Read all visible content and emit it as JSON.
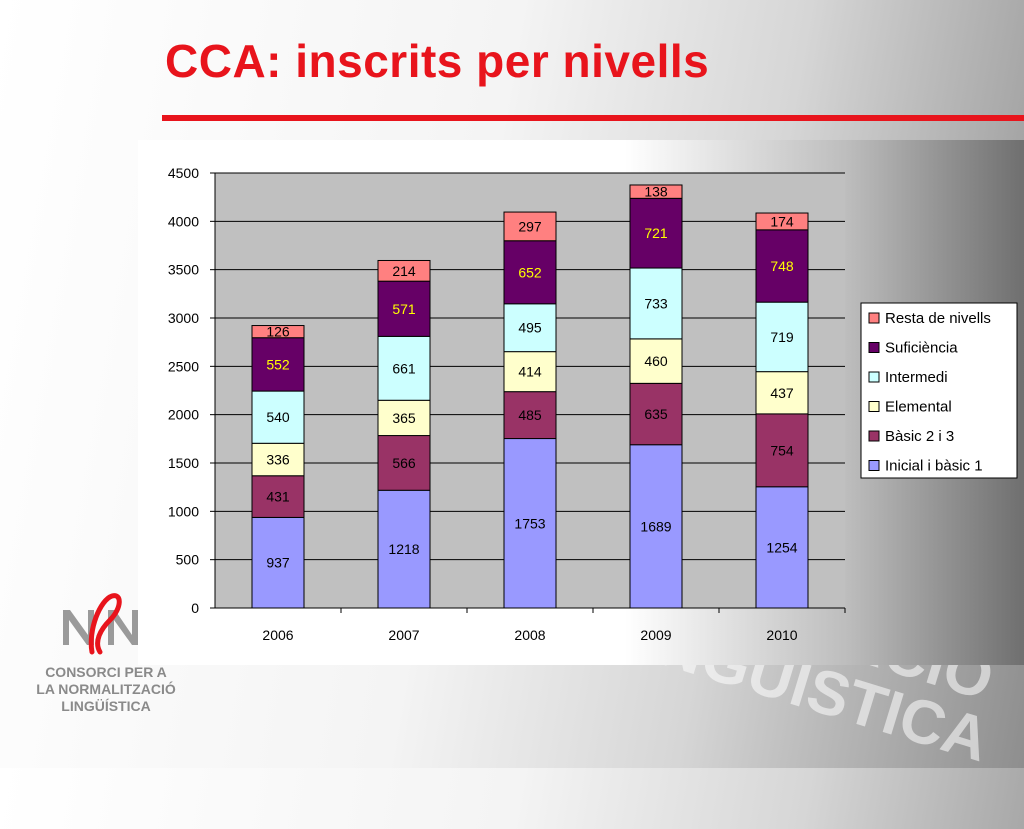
{
  "slide": {
    "title": "CCA: inscrits per nivells"
  },
  "logo": {
    "line1": "CONSORCI PER A",
    "line2": "LA NORMALITZACIÓ",
    "line3": "LINGÜÍSTICA",
    "accent_color": "#e8141c"
  },
  "watermark": {
    "text": "NORMALITZACIÓ LINGÜÍSTICA"
  },
  "colors": {
    "title": "#e8141c",
    "plot_bg": "#c0c0c0"
  },
  "chart_data": {
    "type": "bar",
    "stacked": true,
    "title": "",
    "xlabel": "",
    "ylabel": "",
    "categories": [
      "2006",
      "2007",
      "2008",
      "2009",
      "2010"
    ],
    "ylim": [
      0,
      4500
    ],
    "yticks": [
      0,
      500,
      1000,
      1500,
      2000,
      2500,
      3000,
      3500,
      4000,
      4500
    ],
    "grid": true,
    "legend_position": "right",
    "series": [
      {
        "name": "Inicial i bàsic 1",
        "color": "#9999ff",
        "label_color": "#000000",
        "values": [
          937,
          1218,
          1753,
          1689,
          1254
        ]
      },
      {
        "name": "Bàsic 2 i 3",
        "color": "#993366",
        "label_color": "#000000",
        "values": [
          431,
          566,
          485,
          635,
          754
        ]
      },
      {
        "name": "Elemental",
        "color": "#ffffcc",
        "label_color": "#000000",
        "values": [
          336,
          365,
          414,
          460,
          437
        ]
      },
      {
        "name": "Intermedi",
        "color": "#ccffff",
        "label_color": "#000000",
        "values": [
          540,
          661,
          495,
          733,
          719
        ]
      },
      {
        "name": "Suficiència",
        "color": "#660066",
        "label_color": "#ffff00",
        "values": [
          552,
          571,
          652,
          721,
          748
        ]
      },
      {
        "name": "Resta de nivells",
        "color": "#ff8080",
        "label_color": "#000000",
        "values": [
          126,
          214,
          297,
          138,
          174
        ]
      }
    ]
  }
}
